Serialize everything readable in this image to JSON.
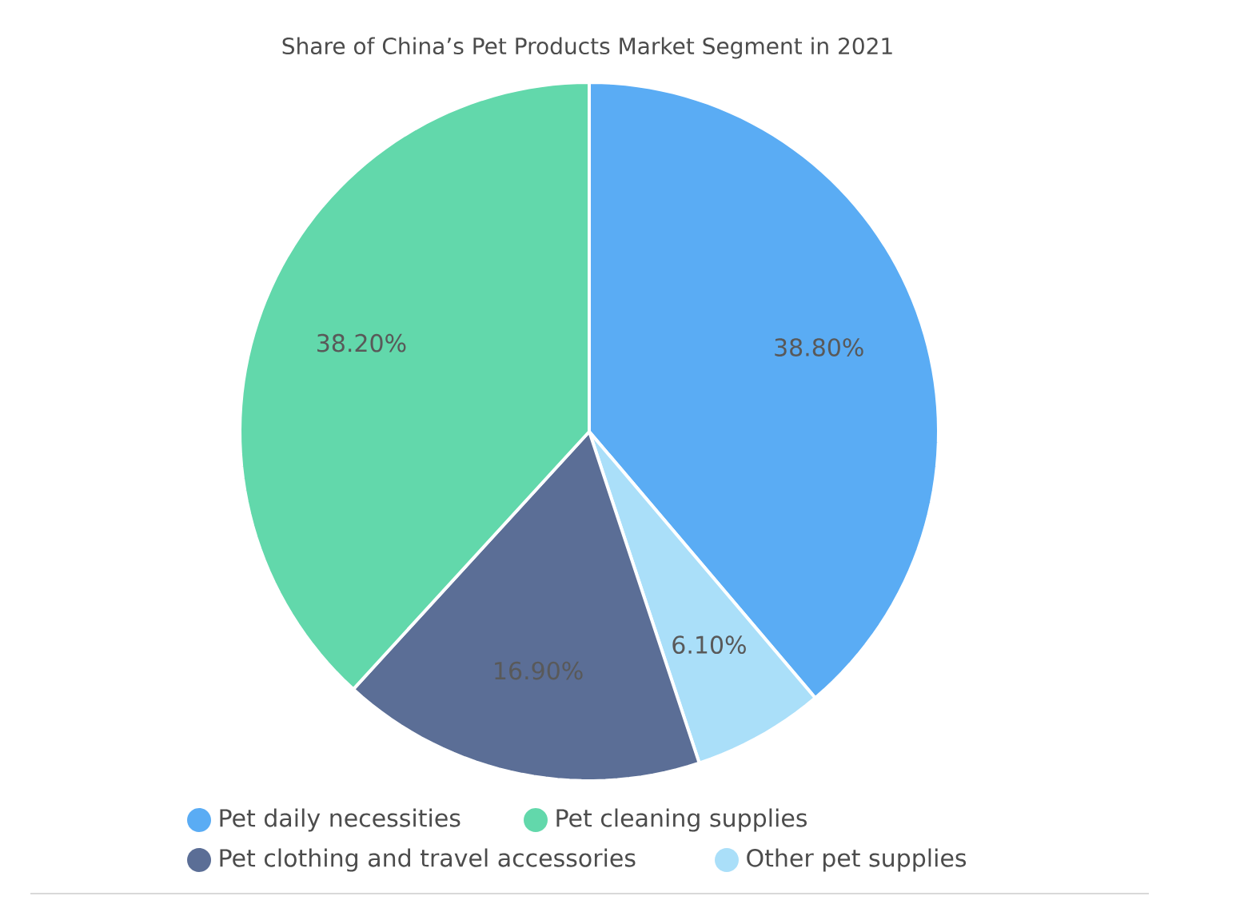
{
  "chart_data": {
    "type": "pie",
    "title": "Share of China’s Pet Products Market Segment in 2021",
    "categories": [
      "Pet daily necessities",
      "Other pet supplies",
      "Pet clothing and travel accessories",
      "Pet cleaning supplies"
    ],
    "values": [
      38.8,
      6.1,
      16.9,
      38.2
    ],
    "value_labels": [
      "38.80%",
      "6.10%",
      "16.90%",
      "38.20%"
    ],
    "colors": [
      "#5aacf4",
      "#aadff9",
      "#5b6e96",
      "#62d8ab"
    ],
    "legend": "bottom"
  }
}
